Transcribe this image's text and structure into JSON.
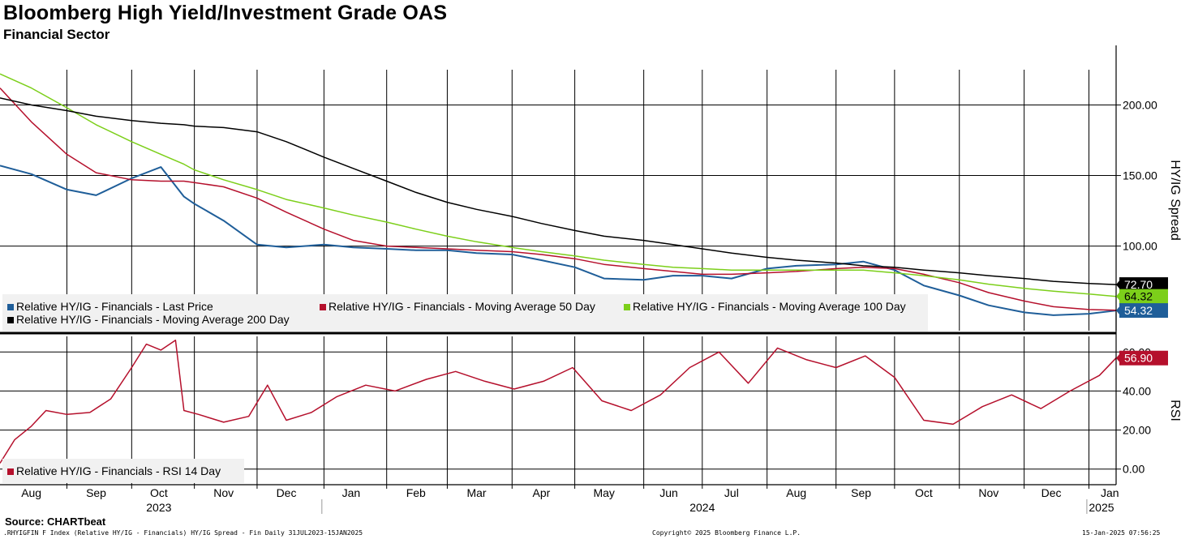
{
  "header": {
    "title": "Bloomberg High Yield/Investment Grade OAS",
    "subtitle": "Financial Sector"
  },
  "footer": {
    "source": "Source: CHARTbeat",
    "security": ".RHYIGFIN F Index (Relative HY/IG - Financials) HY/IG Spread - Fin  Daily 31JUL2023-15JAN2025",
    "copyright": "Copyright© 2025 Bloomberg Finance L.P.",
    "timestamp": "15-Jan-2025 07:56:25"
  },
  "colors": {
    "last": "#1f5e99",
    "ma50": "#b5102c",
    "ma100": "#7ccf1a",
    "ma200": "#000000",
    "rsi": "#b5102c"
  },
  "chart_data": [
    {
      "type": "line",
      "ylabel": "HY/IG Spread",
      "ylim": [
        40,
        225
      ],
      "yticks": [
        100,
        150,
        200
      ],
      "ytick_labels": [
        "100.00",
        "150.00",
        "200.00"
      ],
      "grid": true,
      "legend": "bottom-left",
      "x": [
        "2023-07-31",
        "2023-08-15",
        "2023-09-01",
        "2023-09-15",
        "2023-10-02",
        "2023-10-16",
        "2023-10-27",
        "2023-11-01",
        "2023-11-15",
        "2023-12-01",
        "2023-12-15",
        "2024-01-02",
        "2024-01-16",
        "2024-02-01",
        "2024-02-15",
        "2024-03-01",
        "2024-03-15",
        "2024-04-01",
        "2024-04-15",
        "2024-05-01",
        "2024-05-15",
        "2024-06-03",
        "2024-06-17",
        "2024-07-01",
        "2024-07-15",
        "2024-08-01",
        "2024-08-15",
        "2024-09-03",
        "2024-09-16",
        "2024-10-01",
        "2024-10-15",
        "2024-11-01",
        "2024-11-15",
        "2024-12-02",
        "2024-12-16",
        "2025-01-02",
        "2025-01-15"
      ],
      "series": [
        {
          "key": "last",
          "name": "Relative HY/IG - Financials - Last Price",
          "values": [
            157,
            151,
            140,
            136,
            148,
            156,
            135,
            130,
            118,
            101,
            99,
            101,
            99,
            98,
            97,
            97,
            95,
            94,
            90,
            85,
            77,
            76,
            79,
            79,
            77,
            84,
            86,
            87,
            89,
            83,
            72,
            65,
            58,
            53,
            51,
            52,
            54.32
          ]
        },
        {
          "key": "ma50",
          "name": "Relative HY/IG - Financials - Moving Average 50 Day",
          "values": [
            212,
            188,
            165,
            152,
            147,
            146,
            146,
            145,
            142,
            134,
            124,
            112,
            104,
            100,
            99,
            98,
            97,
            96,
            94,
            91,
            87,
            84,
            82,
            80,
            80,
            81,
            82,
            84,
            85,
            84,
            80,
            74,
            67,
            61,
            57,
            55,
            54.5
          ]
        },
        {
          "key": "ma100",
          "name": "Relative HY/IG - Financials - Moving Average 100 Day",
          "values": [
            222,
            212,
            198,
            186,
            174,
            165,
            158,
            154,
            147,
            140,
            133,
            127,
            122,
            117,
            112,
            107,
            103,
            99,
            96,
            93,
            90,
            87,
            85,
            84,
            83,
            83,
            83,
            83,
            83,
            81,
            79,
            76,
            73,
            70,
            68,
            66,
            64.32
          ]
        },
        {
          "key": "ma200",
          "name": "Relative HY/IG - Financials - Moving Average 200 Day",
          "values": [
            205,
            200,
            196,
            192,
            189,
            187,
            186,
            185,
            184,
            181,
            174,
            163,
            155,
            146,
            138,
            131,
            126,
            121,
            116,
            111,
            107,
            104,
            101,
            98,
            95,
            92,
            90,
            88,
            86,
            85,
            83,
            81,
            79,
            77,
            75,
            73.5,
            72.7
          ]
        }
      ],
      "last_labels": [
        {
          "key": "ma200",
          "text": "72.70",
          "value": 72.7,
          "fill": "#000000",
          "color": "#ffffff"
        },
        {
          "key": "ma100",
          "text": "64.32",
          "value": 64.32,
          "fill": "#7ccf1a",
          "color": "#000000"
        },
        {
          "key": "last",
          "text": "54.32",
          "value": 54.32,
          "fill": "#1f5e99",
          "color": "#ffffff"
        }
      ]
    },
    {
      "type": "line",
      "ylabel": "RSI",
      "ylim": [
        -8,
        68
      ],
      "yticks": [
        0,
        20,
        40,
        60
      ],
      "ytick_labels": [
        "0.00",
        "20.00",
        "40.00",
        "60.00"
      ],
      "grid": true,
      "legend": "bottom-left",
      "x": [
        "2023-07-31",
        "2023-08-07",
        "2023-08-15",
        "2023-08-22",
        "2023-09-01",
        "2023-09-12",
        "2023-09-22",
        "2023-10-02",
        "2023-10-09",
        "2023-10-16",
        "2023-10-23",
        "2023-10-27",
        "2023-11-03",
        "2023-11-15",
        "2023-11-27",
        "2023-12-06",
        "2023-12-15",
        "2023-12-27",
        "2024-01-08",
        "2024-01-22",
        "2024-02-05",
        "2024-02-20",
        "2024-03-05",
        "2024-03-19",
        "2024-04-02",
        "2024-04-16",
        "2024-04-30",
        "2024-05-14",
        "2024-05-28",
        "2024-06-11",
        "2024-06-25",
        "2024-07-09",
        "2024-07-23",
        "2024-08-06",
        "2024-08-20",
        "2024-09-03",
        "2024-09-17",
        "2024-10-01",
        "2024-10-15",
        "2024-10-29",
        "2024-11-12",
        "2024-11-26",
        "2024-12-10",
        "2024-12-24",
        "2025-01-07",
        "2025-01-15"
      ],
      "series": [
        {
          "key": "rsi",
          "name": "Relative HY/IG - Financials - RSI 14 Day",
          "values": [
            3,
            15,
            22,
            30,
            28,
            29,
            36,
            52,
            64,
            61,
            66,
            30,
            28,
            24,
            27,
            43,
            25,
            29,
            37,
            43,
            40,
            46,
            50,
            45,
            41,
            45,
            52,
            35,
            30,
            38,
            52,
            60,
            44,
            62,
            56,
            52,
            58,
            47,
            25,
            23,
            32,
            38,
            31,
            40,
            48,
            56.9
          ]
        }
      ],
      "last_labels": [
        {
          "key": "rsi",
          "text": "56.90",
          "value": 56.9,
          "fill": "#b5102c",
          "color": "#ffffff"
        }
      ]
    }
  ],
  "x_axis": {
    "months": [
      {
        "label": "Aug",
        "date": "2023-08-15"
      },
      {
        "label": "Sep",
        "date": "2023-09-15"
      },
      {
        "label": "Oct",
        "date": "2023-10-15"
      },
      {
        "label": "Nov",
        "date": "2023-11-15"
      },
      {
        "label": "Dec",
        "date": "2023-12-15"
      },
      {
        "label": "Jan",
        "date": "2024-01-15"
      },
      {
        "label": "Feb",
        "date": "2024-02-15"
      },
      {
        "label": "Mar",
        "date": "2024-03-15"
      },
      {
        "label": "Apr",
        "date": "2024-04-15"
      },
      {
        "label": "May",
        "date": "2024-05-15"
      },
      {
        "label": "Jun",
        "date": "2024-06-15"
      },
      {
        "label": "Jul",
        "date": "2024-07-15"
      },
      {
        "label": "Aug",
        "date": "2024-08-15"
      },
      {
        "label": "Sep",
        "date": "2024-09-15"
      },
      {
        "label": "Oct",
        "date": "2024-10-15"
      },
      {
        "label": "Nov",
        "date": "2024-11-15"
      },
      {
        "label": "Dec",
        "date": "2024-12-15"
      },
      {
        "label": "Jan",
        "date": "2025-01-12"
      }
    ],
    "gridlines": [
      "2023-09-01",
      "2023-10-02",
      "2023-11-01",
      "2023-12-01",
      "2024-01-02",
      "2024-02-01",
      "2024-03-01",
      "2024-04-01",
      "2024-05-01",
      "2024-06-03",
      "2024-07-01",
      "2024-08-01",
      "2024-09-03",
      "2024-10-01",
      "2024-11-01",
      "2024-12-02",
      "2025-01-02"
    ],
    "years": [
      {
        "label": "2023",
        "date": "2023-10-15"
      },
      {
        "label": "2024",
        "date": "2024-07-01"
      },
      {
        "label": "2025",
        "date": "2025-01-08"
      }
    ],
    "year_breaks": [
      "2024-01-01",
      "2025-01-01"
    ],
    "range": [
      "2023-07-31",
      "2025-01-15"
    ]
  }
}
